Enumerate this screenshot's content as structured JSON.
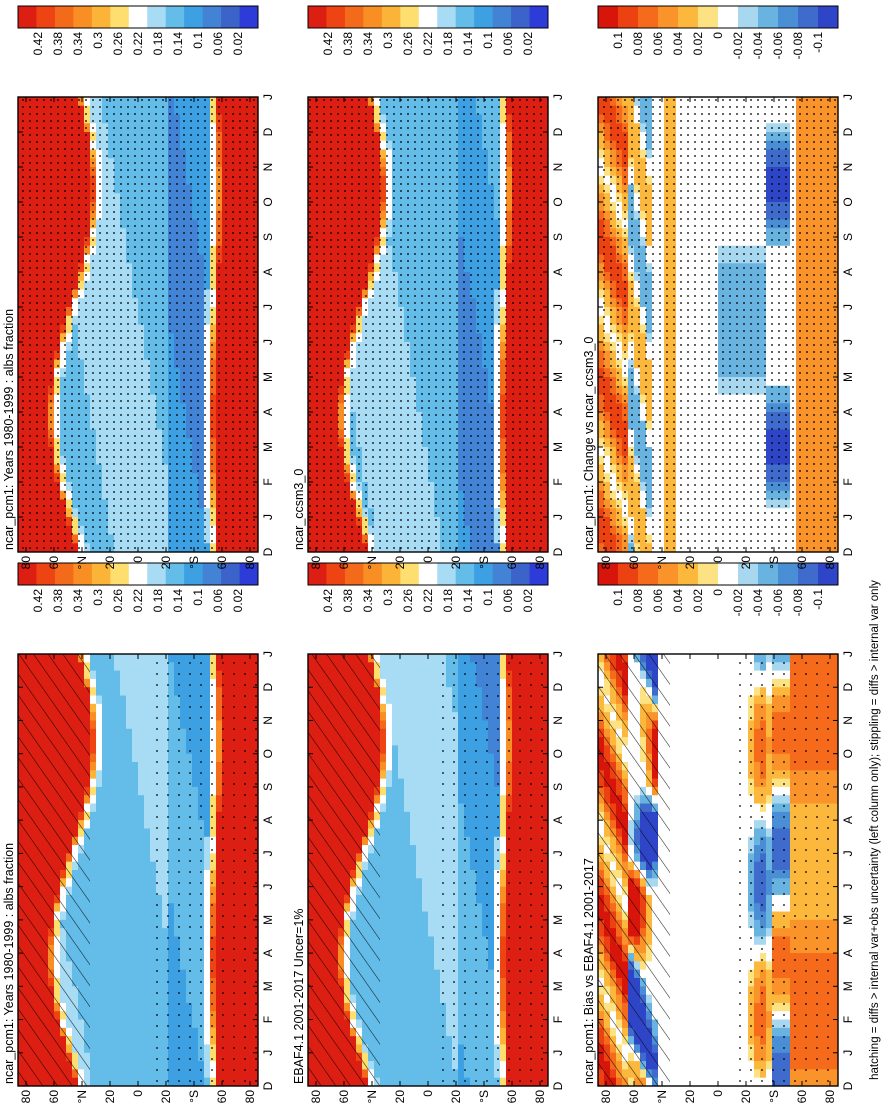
{
  "figure": {
    "footnote": "hatching = diffs > internal var+obs uncertainty (left column only); stippling = diffs > internal var only"
  },
  "chart_data": [
    {
      "type": "heatmap",
      "title": "ncar_pcm1: Years 1980-1999 : albs fraction",
      "xlabel": "",
      "ylabel": "",
      "x_ticks": [
        "D",
        "J",
        "F",
        "M",
        "A",
        "M",
        "J",
        "J",
        "A",
        "S",
        "O",
        "N",
        "D",
        "J"
      ],
      "y_ticks": [
        "80",
        "60",
        "°N",
        "20",
        "0",
        "20",
        "°S",
        "60",
        "80"
      ],
      "colorbar": [
        "0.42",
        "0.38",
        "0.34",
        "0.3",
        "0.26",
        "0.22",
        "0.18",
        "0.14",
        "0.1",
        "0.06",
        "0.02"
      ],
      "scale": "abs",
      "overlay": "hatch"
    },
    {
      "type": "heatmap",
      "title": "EBAF4.1 2001-2017 Uncer=1%",
      "xlabel": "",
      "ylabel": "",
      "x_ticks": [
        "D",
        "J",
        "F",
        "M",
        "A",
        "M",
        "J",
        "J",
        "A",
        "S",
        "O",
        "N",
        "D",
        "J"
      ],
      "y_ticks": [
        "80",
        "60",
        "°N",
        "20",
        "0",
        "20",
        "°S",
        "60",
        "80"
      ],
      "colorbar": [
        "0.42",
        "0.38",
        "0.34",
        "0.3",
        "0.26",
        "0.22",
        "0.18",
        "0.14",
        "0.1",
        "0.06",
        "0.02"
      ],
      "scale": "abs",
      "overlay": "hatch"
    },
    {
      "type": "heatmap",
      "title": "ncar_pcm1: Bias vs EBAF4.1 2001-2017",
      "xlabel": "",
      "ylabel": "",
      "x_ticks": [
        "D",
        "J",
        "F",
        "M",
        "A",
        "M",
        "J",
        "J",
        "A",
        "S",
        "O",
        "N",
        "D",
        "J"
      ],
      "y_ticks": [
        "80",
        "60",
        "°N",
        "20",
        "0",
        "20",
        "°S",
        "60",
        "80"
      ],
      "colorbar": [
        "0.1",
        "0.08",
        "0.06",
        "0.04",
        "0.02",
        "0",
        "-0.02",
        "-0.04",
        "-0.06",
        "-0.08",
        "-0.1"
      ],
      "scale": "diff",
      "overlay": "hatch"
    },
    {
      "type": "heatmap",
      "title": "ncar_pcm1: Years 1980-1999 : albs fraction",
      "xlabel": "",
      "ylabel": "",
      "x_ticks": [
        "D",
        "J",
        "F",
        "M",
        "A",
        "M",
        "J",
        "J",
        "A",
        "S",
        "O",
        "N",
        "D",
        "J"
      ],
      "y_ticks": [
        "80",
        "60",
        "°N",
        "20",
        "0",
        "20",
        "°S",
        "60",
        "80"
      ],
      "colorbar": [
        "0.42",
        "0.38",
        "0.34",
        "0.3",
        "0.26",
        "0.22",
        "0.18",
        "0.14",
        "0.1",
        "0.06",
        "0.02"
      ],
      "scale": "abs",
      "overlay": "stipple"
    },
    {
      "type": "heatmap",
      "title": "ncar_ccsm3_0",
      "xlabel": "",
      "ylabel": "",
      "x_ticks": [
        "D",
        "J",
        "F",
        "M",
        "A",
        "M",
        "J",
        "J",
        "A",
        "S",
        "O",
        "N",
        "D",
        "J"
      ],
      "y_ticks": [
        "80",
        "60",
        "°N",
        "20",
        "0",
        "20",
        "°S",
        "60",
        "80"
      ],
      "colorbar": [
        "0.42",
        "0.38",
        "0.34",
        "0.3",
        "0.26",
        "0.22",
        "0.18",
        "0.14",
        "0.1",
        "0.06",
        "0.02"
      ],
      "scale": "abs",
      "overlay": "stipple"
    },
    {
      "type": "heatmap",
      "title": "ncar_pcm1: Change vs ncar_ccsm3_0",
      "xlabel": "",
      "ylabel": "",
      "x_ticks": [
        "D",
        "J",
        "F",
        "M",
        "A",
        "M",
        "J",
        "J",
        "A",
        "S",
        "O",
        "N",
        "D",
        "J"
      ],
      "y_ticks": [
        "80",
        "60",
        "°N",
        "20",
        "0",
        "20",
        "°S",
        "60",
        "80"
      ],
      "colorbar": [
        "0.1",
        "0.08",
        "0.06",
        "0.04",
        "0.02",
        "0",
        "-0.02",
        "-0.04",
        "-0.06",
        "-0.08",
        "-0.1"
      ],
      "scale": "diff",
      "overlay": "stipple"
    }
  ]
}
